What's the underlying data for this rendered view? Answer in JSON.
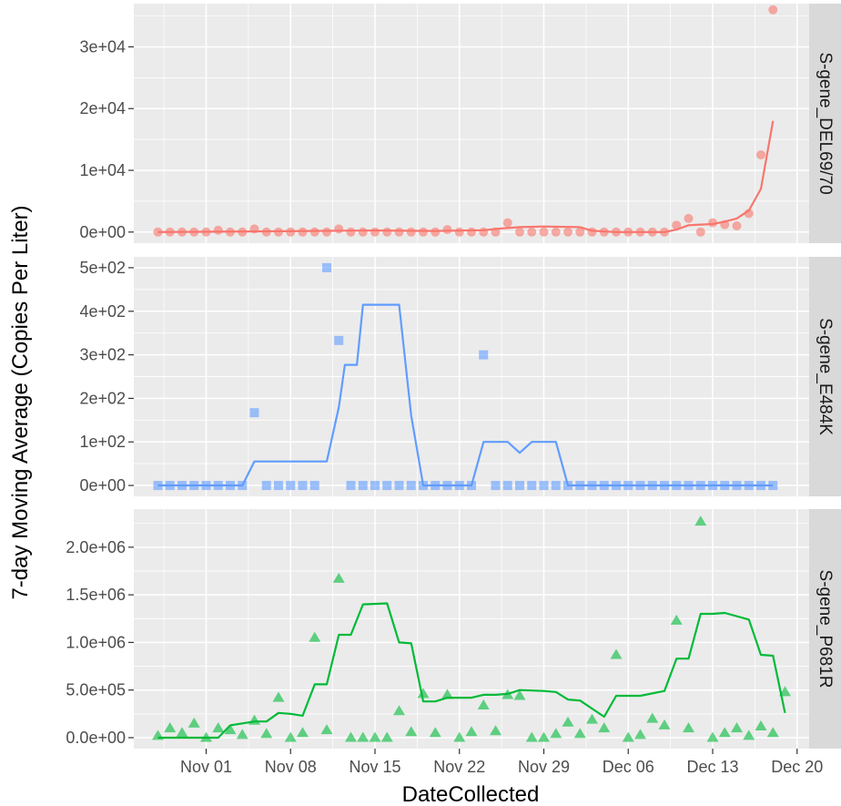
{
  "chart_data": {
    "type": "line",
    "xlabel": "DateCollected",
    "ylabel": "7-day Moving Average (Copies Per Liter)",
    "x_ticks": [
      "Nov 01",
      "Nov 08",
      "Nov 15",
      "Nov 22",
      "Nov 29",
      "Dec 06",
      "Dec 13",
      "Dec 20"
    ],
    "x_tick_dates": [
      "2020-11-01",
      "2020-11-08",
      "2020-11-15",
      "2020-11-22",
      "2020-11-29",
      "2020-12-06",
      "2020-12-13",
      "2020-12-20"
    ],
    "x_range": [
      "2020-10-26",
      "2020-12-21"
    ],
    "grid": true,
    "point_series_note": "",
    "panels": [
      {
        "name": "S-gene_DEL69/70",
        "color": "#F8766D",
        "marker": "circle",
        "ylim": [
          -1800,
          37000
        ],
        "y_ticks": [
          0,
          10000,
          20000,
          30000
        ],
        "y_tick_labels": [
          "0e+00",
          "1e+04",
          "2e+04",
          "3e+04"
        ],
        "points": [
          [
            "2020-10-28",
            0
          ],
          [
            "2020-10-29",
            0
          ],
          [
            "2020-10-30",
            0
          ],
          [
            "2020-10-31",
            0
          ],
          [
            "2020-11-01",
            0
          ],
          [
            "2020-11-02",
            300
          ],
          [
            "2020-11-03",
            0
          ],
          [
            "2020-11-04",
            0
          ],
          [
            "2020-11-05",
            500
          ],
          [
            "2020-11-06",
            0
          ],
          [
            "2020-11-07",
            0
          ],
          [
            "2020-11-08",
            0
          ],
          [
            "2020-11-09",
            0
          ],
          [
            "2020-11-10",
            0
          ],
          [
            "2020-11-11",
            0
          ],
          [
            "2020-11-12",
            500
          ],
          [
            "2020-11-13",
            0
          ],
          [
            "2020-11-14",
            0
          ],
          [
            "2020-11-15",
            0
          ],
          [
            "2020-11-16",
            0
          ],
          [
            "2020-11-17",
            0
          ],
          [
            "2020-11-18",
            0
          ],
          [
            "2020-11-19",
            0
          ],
          [
            "2020-11-20",
            0
          ],
          [
            "2020-11-21",
            400
          ],
          [
            "2020-11-22",
            0
          ],
          [
            "2020-11-23",
            0
          ],
          [
            "2020-11-24",
            0
          ],
          [
            "2020-11-25",
            0
          ],
          [
            "2020-11-26",
            1500
          ],
          [
            "2020-11-27",
            0
          ],
          [
            "2020-11-28",
            0
          ],
          [
            "2020-11-29",
            0
          ],
          [
            "2020-11-30",
            0
          ],
          [
            "2020-12-01",
            0
          ],
          [
            "2020-12-02",
            0
          ],
          [
            "2020-12-03",
            0
          ],
          [
            "2020-12-04",
            0
          ],
          [
            "2020-12-05",
            0
          ],
          [
            "2020-12-06",
            0
          ],
          [
            "2020-12-07",
            0
          ],
          [
            "2020-12-08",
            0
          ],
          [
            "2020-12-09",
            0
          ],
          [
            "2020-12-10",
            1100
          ],
          [
            "2020-12-11",
            2200
          ],
          [
            "2020-12-12",
            0
          ],
          [
            "2020-12-13",
            1500
          ],
          [
            "2020-12-14",
            1200
          ],
          [
            "2020-12-15",
            1000
          ],
          [
            "2020-12-16",
            3000
          ],
          [
            "2020-12-17",
            12500
          ],
          [
            "2020-12-18",
            36000
          ]
        ],
        "line": [
          [
            "2020-10-28",
            0
          ],
          [
            "2020-11-05",
            100
          ],
          [
            "2020-11-12",
            200
          ],
          [
            "2020-11-15",
            250
          ],
          [
            "2020-11-20",
            180
          ],
          [
            "2020-11-24",
            300
          ],
          [
            "2020-11-25",
            500
          ],
          [
            "2020-11-27",
            800
          ],
          [
            "2020-11-29",
            900
          ],
          [
            "2020-12-02",
            800
          ],
          [
            "2020-12-03",
            200
          ],
          [
            "2020-12-05",
            0
          ],
          [
            "2020-12-09",
            0
          ],
          [
            "2020-12-10",
            400
          ],
          [
            "2020-12-11",
            1100
          ],
          [
            "2020-12-13",
            1300
          ],
          [
            "2020-12-14",
            1700
          ],
          [
            "2020-12-15",
            2200
          ],
          [
            "2020-12-16",
            3500
          ],
          [
            "2020-12-17",
            7000
          ],
          [
            "2020-12-18",
            18000
          ]
        ]
      },
      {
        "name": "S-gene_E484K",
        "color": "#619CFF",
        "marker": "square",
        "ylim": [
          -25,
          525
        ],
        "y_ticks": [
          0,
          100,
          200,
          300,
          400,
          500
        ],
        "y_tick_labels": [
          "0e+00",
          "1e+02",
          "2e+02",
          "3e+02",
          "4e+02",
          "5e+02"
        ],
        "points": [
          [
            "2020-10-28",
            0
          ],
          [
            "2020-10-29",
            0
          ],
          [
            "2020-10-30",
            0
          ],
          [
            "2020-10-31",
            0
          ],
          [
            "2020-11-01",
            0
          ],
          [
            "2020-11-02",
            0
          ],
          [
            "2020-11-03",
            0
          ],
          [
            "2020-11-04",
            0
          ],
          [
            "2020-11-05",
            167
          ],
          [
            "2020-11-06",
            0
          ],
          [
            "2020-11-07",
            0
          ],
          [
            "2020-11-08",
            0
          ],
          [
            "2020-11-09",
            0
          ],
          [
            "2020-11-10",
            0
          ],
          [
            "2020-11-11",
            500
          ],
          [
            "2020-11-12",
            333
          ],
          [
            "2020-11-13",
            0
          ],
          [
            "2020-11-14",
            0
          ],
          [
            "2020-11-15",
            0
          ],
          [
            "2020-11-16",
            0
          ],
          [
            "2020-11-17",
            0
          ],
          [
            "2020-11-18",
            0
          ],
          [
            "2020-11-19",
            0
          ],
          [
            "2020-11-20",
            0
          ],
          [
            "2020-11-21",
            0
          ],
          [
            "2020-11-22",
            0
          ],
          [
            "2020-11-23",
            0
          ],
          [
            "2020-11-24",
            300
          ],
          [
            "2020-11-25",
            0
          ],
          [
            "2020-11-26",
            0
          ],
          [
            "2020-11-27",
            0
          ],
          [
            "2020-11-28",
            0
          ],
          [
            "2020-11-29",
            0
          ],
          [
            "2020-11-30",
            0
          ],
          [
            "2020-12-01",
            0
          ],
          [
            "2020-12-02",
            0
          ],
          [
            "2020-12-03",
            0
          ],
          [
            "2020-12-04",
            0
          ],
          [
            "2020-12-05",
            0
          ],
          [
            "2020-12-06",
            0
          ],
          [
            "2020-12-07",
            0
          ],
          [
            "2020-12-08",
            0
          ],
          [
            "2020-12-09",
            0
          ],
          [
            "2020-12-10",
            0
          ],
          [
            "2020-12-11",
            0
          ],
          [
            "2020-12-12",
            0
          ],
          [
            "2020-12-13",
            0
          ],
          [
            "2020-12-14",
            0
          ],
          [
            "2020-12-15",
            0
          ],
          [
            "2020-12-16",
            0
          ],
          [
            "2020-12-17",
            0
          ],
          [
            "2020-12-18",
            0
          ]
        ],
        "line": [
          [
            "2020-10-28",
            0
          ],
          [
            "2020-11-04",
            0
          ],
          [
            "2020-11-05",
            55
          ],
          [
            "2020-11-11",
            55
          ],
          [
            "2020-11-12",
            180
          ],
          [
            "2020-11-12.5",
            277
          ],
          [
            "2020-11-13.5",
            277
          ],
          [
            "2020-11-14",
            415
          ],
          [
            "2020-11-17",
            415
          ],
          [
            "2020-11-18",
            160
          ],
          [
            "2020-11-19",
            0
          ],
          [
            "2020-11-23",
            0
          ],
          [
            "2020-11-24",
            100
          ],
          [
            "2020-11-26",
            100
          ],
          [
            "2020-11-27",
            75
          ],
          [
            "2020-11-28",
            100
          ],
          [
            "2020-11-30",
            100
          ],
          [
            "2020-12-01",
            0
          ],
          [
            "2020-12-18",
            0
          ]
        ]
      },
      {
        "name": "S-gene_P681R",
        "color": "#00BA38",
        "marker": "triangle",
        "ylim": [
          -115000,
          2400000
        ],
        "y_ticks": [
          0,
          500000,
          1000000,
          1500000,
          2000000
        ],
        "y_tick_labels": [
          "0.0e+00",
          "5.0e+05",
          "1.0e+06",
          "1.5e+06",
          "2.0e+06"
        ],
        "points": [
          [
            "2020-10-28",
            20000
          ],
          [
            "2020-10-29",
            100000
          ],
          [
            "2020-10-30",
            50000
          ],
          [
            "2020-10-31",
            150000
          ],
          [
            "2020-11-01",
            0
          ],
          [
            "2020-11-02",
            100000
          ],
          [
            "2020-11-03",
            80000
          ],
          [
            "2020-11-04",
            30000
          ],
          [
            "2020-11-05",
            180000
          ],
          [
            "2020-11-06",
            40000
          ],
          [
            "2020-11-07",
            420000
          ],
          [
            "2020-11-08",
            0
          ],
          [
            "2020-11-09",
            50000
          ],
          [
            "2020-11-10",
            1050000
          ],
          [
            "2020-11-11",
            80000
          ],
          [
            "2020-11-12",
            1670000
          ],
          [
            "2020-11-13",
            0
          ],
          [
            "2020-11-14",
            0
          ],
          [
            "2020-11-15",
            0
          ],
          [
            "2020-11-16",
            0
          ],
          [
            "2020-11-17",
            280000
          ],
          [
            "2020-11-18",
            60000
          ],
          [
            "2020-11-19",
            460000
          ],
          [
            "2020-11-20",
            50000
          ],
          [
            "2020-11-21",
            450000
          ],
          [
            "2020-11-22",
            0
          ],
          [
            "2020-11-23",
            60000
          ],
          [
            "2020-11-24",
            340000
          ],
          [
            "2020-11-25",
            70000
          ],
          [
            "2020-11-26",
            450000
          ],
          [
            "2020-11-27",
            440000
          ],
          [
            "2020-11-28",
            0
          ],
          [
            "2020-11-29",
            0
          ],
          [
            "2020-11-30",
            40000
          ],
          [
            "2020-12-01",
            160000
          ],
          [
            "2020-12-02",
            40000
          ],
          [
            "2020-12-03",
            190000
          ],
          [
            "2020-12-04",
            100000
          ],
          [
            "2020-12-05",
            870000
          ],
          [
            "2020-12-06",
            0
          ],
          [
            "2020-12-07",
            30000
          ],
          [
            "2020-12-08",
            200000
          ],
          [
            "2020-12-09",
            130000
          ],
          [
            "2020-12-10",
            1230000
          ],
          [
            "2020-12-11",
            100000
          ],
          [
            "2020-12-12",
            2270000
          ],
          [
            "2020-12-13",
            0
          ],
          [
            "2020-12-14",
            50000
          ],
          [
            "2020-12-15",
            100000
          ],
          [
            "2020-12-16",
            20000
          ],
          [
            "2020-12-17",
            120000
          ],
          [
            "2020-12-18",
            50000
          ],
          [
            "2020-12-19",
            480000
          ]
        ],
        "line": [
          [
            "2020-10-28",
            0
          ],
          [
            "2020-11-02",
            0
          ],
          [
            "2020-11-03",
            130000
          ],
          [
            "2020-11-04",
            150000
          ],
          [
            "2020-11-05",
            170000
          ],
          [
            "2020-11-06",
            170000
          ],
          [
            "2020-11-07",
            260000
          ],
          [
            "2020-11-08",
            250000
          ],
          [
            "2020-11-09",
            230000
          ],
          [
            "2020-11-10",
            560000
          ],
          [
            "2020-11-11",
            560000
          ],
          [
            "2020-11-12",
            1080000
          ],
          [
            "2020-11-13",
            1080000
          ],
          [
            "2020-11-14",
            1400000
          ],
          [
            "2020-11-16",
            1410000
          ],
          [
            "2020-11-17",
            1000000
          ],
          [
            "2020-11-18",
            990000
          ],
          [
            "2020-11-19",
            380000
          ],
          [
            "2020-11-20",
            380000
          ],
          [
            "2020-11-21",
            420000
          ],
          [
            "2020-11-23",
            420000
          ],
          [
            "2020-11-24",
            450000
          ],
          [
            "2020-11-25",
            450000
          ],
          [
            "2020-11-26",
            460000
          ],
          [
            "2020-11-27",
            500000
          ],
          [
            "2020-11-29",
            490000
          ],
          [
            "2020-11-30",
            480000
          ],
          [
            "2020-12-01",
            400000
          ],
          [
            "2020-12-02",
            390000
          ],
          [
            "2020-12-04",
            220000
          ],
          [
            "2020-12-05",
            440000
          ],
          [
            "2020-12-07",
            440000
          ],
          [
            "2020-12-09",
            490000
          ],
          [
            "2020-12-10",
            830000
          ],
          [
            "2020-12-11",
            830000
          ],
          [
            "2020-12-12",
            1300000
          ],
          [
            "2020-12-13",
            1300000
          ],
          [
            "2020-12-14",
            1310000
          ],
          [
            "2020-12-16",
            1240000
          ],
          [
            "2020-12-17",
            870000
          ],
          [
            "2020-12-18",
            860000
          ],
          [
            "2020-12-19",
            260000
          ]
        ]
      }
    ]
  }
}
